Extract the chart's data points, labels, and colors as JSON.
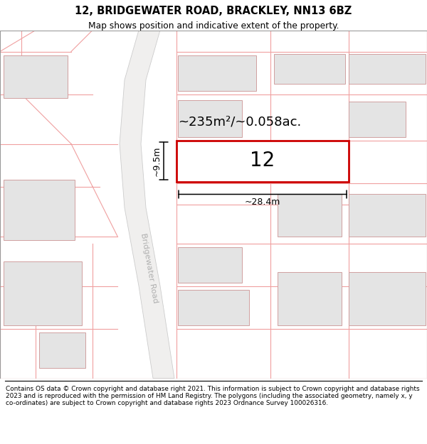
{
  "title_line1": "12, BRIDGEWATER ROAD, BRACKLEY, NN13 6BZ",
  "title_line2": "Map shows position and indicative extent of the property.",
  "footer_text": "Contains OS data © Crown copyright and database right 2021. This information is subject to Crown copyright and database rights 2023 and is reproduced with the permission of HM Land Registry. The polygons (including the associated geometry, namely x, y co-ordinates) are subject to Crown copyright and database rights 2023 Ordnance Survey 100026316.",
  "area_text": "~235m²/~0.058ac.",
  "number_text": "12",
  "width_label": "~28.4m",
  "height_label": "~9.5m",
  "road_label": "Bridgewater Road",
  "map_bg": "#f8f8f8",
  "property_rect_color": "#cc0000",
  "building_fill": "#e4e4e4",
  "building_edge": "#d0a0a0",
  "red_line": "#f0a0a0",
  "road_fill": "#f0efee",
  "road_edge": "#cccccc"
}
